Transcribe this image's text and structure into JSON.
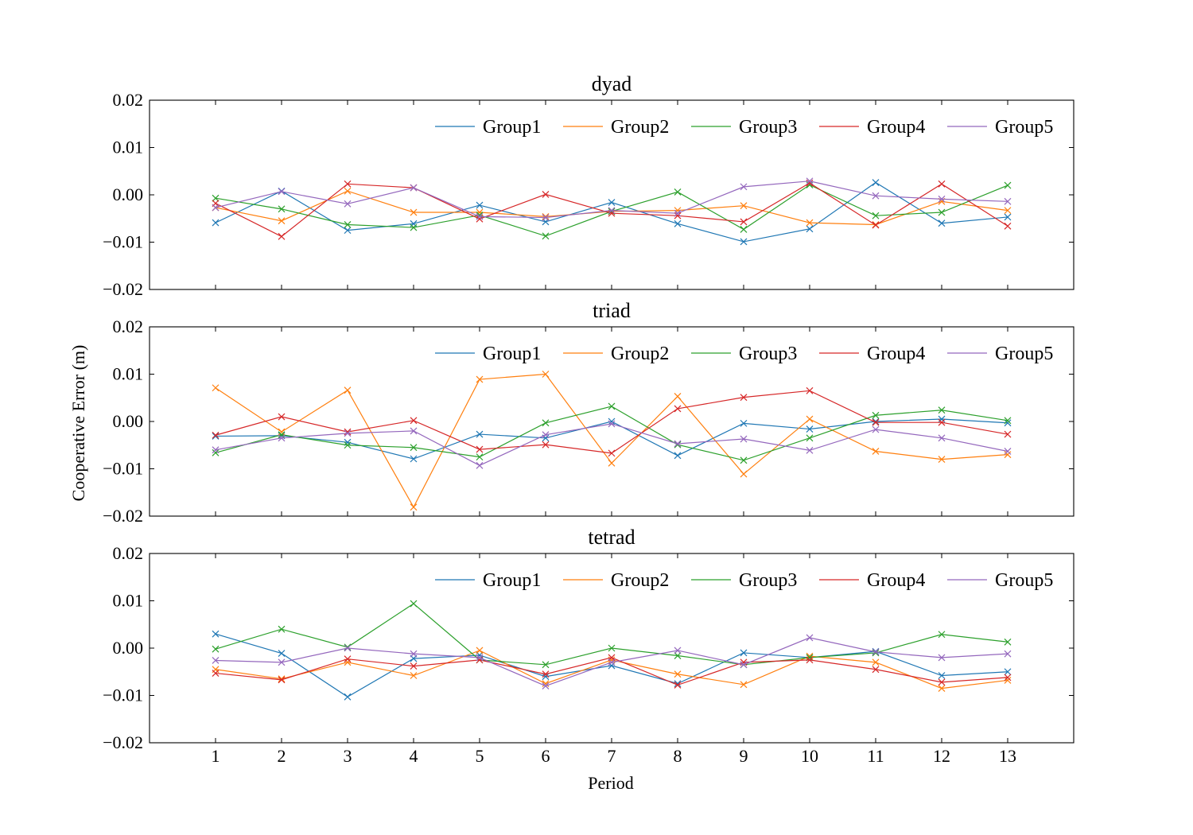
{
  "figure": {
    "ylabel": "Cooperative Error (m)",
    "xlabel": "Period"
  },
  "colors": [
    "#1f77b4",
    "#ff7f0e",
    "#2ca02c",
    "#d62728",
    "#9467bd"
  ],
  "chart_data": [
    {
      "type": "line",
      "title": "dyad",
      "xlabel": "",
      "ylabel": "Cooperative Error (m)",
      "x": [
        1,
        2,
        3,
        4,
        5,
        6,
        7,
        8,
        9,
        10,
        11,
        12,
        13
      ],
      "xlim": [
        0,
        14
      ],
      "ylim": [
        -0.02,
        0.02
      ],
      "yticks": [
        "0.02",
        "0.01",
        "0.00",
        "−0.01",
        "−0.02"
      ],
      "ytick_values": [
        0.02,
        0.01,
        0.0,
        -0.01,
        -0.02
      ],
      "marker": "x",
      "legend_position": "upper-right",
      "series": [
        {
          "name": "Group1",
          "values": [
            -0.0059,
            0.0008,
            -0.0075,
            -0.0061,
            -0.0022,
            -0.0057,
            -0.0016,
            -0.0061,
            -0.0099,
            -0.0072,
            0.0026,
            -0.006,
            -0.0047
          ]
        },
        {
          "name": "Group2",
          "values": [
            -0.0027,
            -0.0055,
            0.0008,
            -0.0037,
            -0.0037,
            -0.0046,
            -0.0035,
            -0.0033,
            -0.0023,
            -0.0059,
            -0.0063,
            -0.0014,
            -0.0033
          ]
        },
        {
          "name": "Group3",
          "values": [
            -0.0007,
            -0.003,
            -0.0063,
            -0.0069,
            -0.0043,
            -0.0087,
            -0.0035,
            0.0006,
            -0.0073,
            0.0021,
            -0.0044,
            -0.0037,
            0.002
          ]
        },
        {
          "name": "Group4",
          "values": [
            -0.0018,
            -0.0088,
            0.0023,
            0.0015,
            -0.0051,
            0.0001,
            -0.0039,
            -0.0044,
            -0.0057,
            0.0025,
            -0.0064,
            0.0023,
            -0.0066
          ]
        },
        {
          "name": "Group5",
          "values": [
            -0.0027,
            0.0007,
            -0.0019,
            0.0015,
            -0.0046,
            -0.0048,
            -0.0033,
            -0.0039,
            0.0017,
            0.0029,
            -0.0002,
            -0.0009,
            -0.0014
          ]
        }
      ]
    },
    {
      "type": "line",
      "title": "triad",
      "xlabel": "",
      "ylabel": "Cooperative Error (m)",
      "x": [
        1,
        2,
        3,
        4,
        5,
        6,
        7,
        8,
        9,
        10,
        11,
        12,
        13
      ],
      "xlim": [
        0,
        14
      ],
      "ylim": [
        -0.02,
        0.02
      ],
      "yticks": [
        "0.02",
        "0.01",
        "0.00",
        "−0.01",
        "−0.02"
      ],
      "ytick_values": [
        0.02,
        0.01,
        0.0,
        -0.01,
        -0.02
      ],
      "marker": "x",
      "legend_position": "upper-right",
      "series": [
        {
          "name": "Group1",
          "values": [
            -0.0031,
            -0.003,
            -0.0044,
            -0.0079,
            -0.0027,
            -0.0035,
            0.0,
            -0.0072,
            -0.0004,
            -0.0016,
            0.0,
            0.0005,
            -0.0003
          ]
        },
        {
          "name": "Group2",
          "values": [
            0.0071,
            -0.0022,
            0.0066,
            -0.0181,
            0.0089,
            0.01,
            -0.0088,
            0.0053,
            -0.0111,
            0.0005,
            -0.0063,
            -0.008,
            -0.007
          ]
        },
        {
          "name": "Group3",
          "values": [
            -0.0066,
            -0.0028,
            -0.005,
            -0.0055,
            -0.0075,
            -0.0003,
            0.0032,
            -0.0049,
            -0.0082,
            -0.0035,
            0.0013,
            0.0024,
            0.0002
          ]
        },
        {
          "name": "Group4",
          "values": [
            -0.0029,
            0.001,
            -0.0022,
            0.0002,
            -0.0059,
            -0.0049,
            -0.0067,
            0.0027,
            0.0051,
            0.0065,
            -0.0002,
            -0.0002,
            -0.0027
          ]
        },
        {
          "name": "Group5",
          "values": [
            -0.006,
            -0.0035,
            -0.0025,
            -0.002,
            -0.0093,
            -0.0028,
            -0.0005,
            -0.0047,
            -0.0037,
            -0.0061,
            -0.0017,
            -0.0035,
            -0.0063
          ]
        }
      ]
    },
    {
      "type": "line",
      "title": "tetrad",
      "xlabel": "Period",
      "ylabel": "Cooperative Error (m)",
      "x": [
        1,
        2,
        3,
        4,
        5,
        6,
        7,
        8,
        9,
        10,
        11,
        12,
        13
      ],
      "xticks": [
        "1",
        "2",
        "3",
        "4",
        "5",
        "6",
        "7",
        "8",
        "9",
        "10",
        "11",
        "12",
        "13"
      ],
      "xlim": [
        0,
        14
      ],
      "ylim": [
        -0.02,
        0.02
      ],
      "yticks": [
        "0.02",
        "0.01",
        "0.00",
        "−0.01",
        "−0.02"
      ],
      "ytick_values": [
        0.02,
        0.01,
        0.0,
        -0.01,
        -0.02
      ],
      "marker": "x",
      "legend_position": "upper-right",
      "series": [
        {
          "name": "Group1",
          "values": [
            0.003,
            -0.0011,
            -0.0103,
            -0.0022,
            -0.0015,
            -0.006,
            -0.0037,
            -0.0075,
            -0.001,
            -0.002,
            -0.0007,
            -0.0058,
            -0.005
          ]
        },
        {
          "name": "Group2",
          "values": [
            -0.0045,
            -0.0065,
            -0.003,
            -0.0058,
            -0.0005,
            -0.0075,
            -0.0025,
            -0.0055,
            -0.0077,
            -0.0017,
            -0.003,
            -0.0085,
            -0.0068
          ]
        },
        {
          "name": "Group3",
          "values": [
            -0.0002,
            0.004,
            0.0002,
            0.0094,
            -0.0025,
            -0.0035,
            0.0,
            -0.0016,
            -0.0035,
            -0.002,
            -0.001,
            0.0029,
            0.0013
          ]
        },
        {
          "name": "Group4",
          "values": [
            -0.0053,
            -0.0067,
            -0.0023,
            -0.0038,
            -0.0025,
            -0.0055,
            -0.002,
            -0.0078,
            -0.003,
            -0.0025,
            -0.0045,
            -0.0072,
            -0.0062
          ]
        },
        {
          "name": "Group5",
          "values": [
            -0.0026,
            -0.003,
            0.0,
            -0.0012,
            -0.002,
            -0.008,
            -0.003,
            -0.0005,
            -0.0035,
            0.0022,
            -0.0008,
            -0.002,
            -0.0012
          ]
        }
      ]
    }
  ]
}
